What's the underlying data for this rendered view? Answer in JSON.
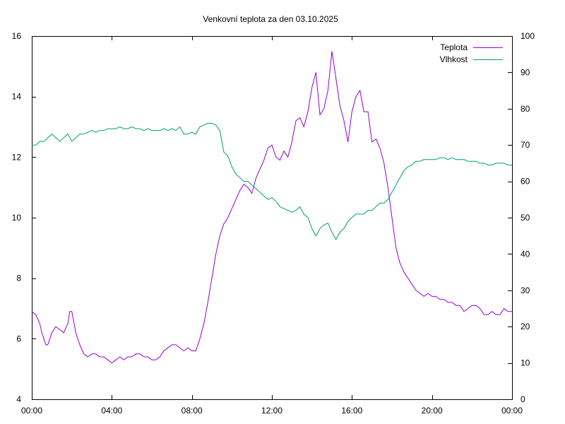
{
  "chart_data": {
    "type": "line",
    "title": "Venkovní teplota za den 03.10.2025",
    "xlabel": "",
    "ylabel": "",
    "y2label": "",
    "x_range_hours": [
      0,
      24
    ],
    "x_tick_labels": [
      "00:00",
      "04:00",
      "08:00",
      "12:00",
      "16:00",
      "20:00",
      "00:00"
    ],
    "x_tick_hours": [
      0,
      4,
      8,
      12,
      16,
      20,
      24
    ],
    "ylim": [
      4,
      16
    ],
    "y_ticks": [
      4,
      6,
      8,
      10,
      12,
      14,
      16
    ],
    "y2lim": [
      0,
      100
    ],
    "y2_ticks": [
      0,
      10,
      20,
      30,
      40,
      50,
      60,
      70,
      80,
      90,
      100
    ],
    "grid": false,
    "legend_position": "top-right",
    "series": [
      {
        "name": "Teplota",
        "axis": "left",
        "color": "#9400d3",
        "x_hours": [
          0,
          0.2,
          0.4,
          0.5,
          0.6,
          0.7,
          0.8,
          1.0,
          1.2,
          1.4,
          1.6,
          1.8,
          1.9,
          2.0,
          2.2,
          2.4,
          2.6,
          2.8,
          3.0,
          3.2,
          3.4,
          3.6,
          3.8,
          4.0,
          4.2,
          4.4,
          4.6,
          4.8,
          5.0,
          5.2,
          5.4,
          5.6,
          5.8,
          6.0,
          6.2,
          6.4,
          6.6,
          6.8,
          7.0,
          7.2,
          7.4,
          7.6,
          7.8,
          8.0,
          8.2,
          8.4,
          8.6,
          8.8,
          9.0,
          9.2,
          9.4,
          9.6,
          9.8,
          10.0,
          10.2,
          10.4,
          10.6,
          10.8,
          11.0,
          11.2,
          11.4,
          11.6,
          11.8,
          12.0,
          12.2,
          12.4,
          12.6,
          12.8,
          13.0,
          13.2,
          13.4,
          13.6,
          13.8,
          14.0,
          14.2,
          14.4,
          14.6,
          14.8,
          15.0,
          15.2,
          15.4,
          15.6,
          15.8,
          16.0,
          16.2,
          16.4,
          16.6,
          16.8,
          17.0,
          17.2,
          17.4,
          17.6,
          17.8,
          18.0,
          18.2,
          18.4,
          18.6,
          18.8,
          19.0,
          19.2,
          19.4,
          19.6,
          19.8,
          20.0,
          20.2,
          20.4,
          20.6,
          20.8,
          21.0,
          21.2,
          21.4,
          21.6,
          21.8,
          22.0,
          22.2,
          22.4,
          22.6,
          22.8,
          23.0,
          23.2,
          23.4,
          23.6,
          23.8,
          24.0
        ],
        "values": [
          6.9,
          6.8,
          6.5,
          6.2,
          6.0,
          5.8,
          5.8,
          6.2,
          6.4,
          6.3,
          6.2,
          6.5,
          6.9,
          6.9,
          6.2,
          5.8,
          5.5,
          5.4,
          5.5,
          5.5,
          5.4,
          5.4,
          5.3,
          5.2,
          5.3,
          5.4,
          5.3,
          5.4,
          5.4,
          5.5,
          5.5,
          5.4,
          5.4,
          5.3,
          5.3,
          5.4,
          5.6,
          5.7,
          5.8,
          5.8,
          5.7,
          5.6,
          5.7,
          5.6,
          5.6,
          6.0,
          6.5,
          7.2,
          8.0,
          8.8,
          9.4,
          9.8,
          10.0,
          10.3,
          10.6,
          10.9,
          11.1,
          11.0,
          10.8,
          11.3,
          11.6,
          11.9,
          12.3,
          12.4,
          12.0,
          11.9,
          12.2,
          12.0,
          12.5,
          13.2,
          13.3,
          13.0,
          13.5,
          14.3,
          14.8,
          13.4,
          13.6,
          14.2,
          15.5,
          14.6,
          13.7,
          13.2,
          12.5,
          13.5,
          14.0,
          14.2,
          13.5,
          13.5,
          12.5,
          12.6,
          12.3,
          11.8,
          11.0,
          10.0,
          9.0,
          8.5,
          8.2,
          8.0,
          7.8,
          7.6,
          7.5,
          7.4,
          7.5,
          7.4,
          7.4,
          7.3,
          7.3,
          7.2,
          7.2,
          7.1,
          7.1,
          6.9,
          7.0,
          7.1,
          7.1,
          7.0,
          6.8,
          6.8,
          6.9,
          6.8,
          6.8,
          7.0,
          6.9,
          6.9
        ]
      },
      {
        "name": "Vlhkost",
        "axis": "right",
        "color": "#009e73",
        "x_hours": [
          0,
          0.2,
          0.4,
          0.6,
          0.8,
          1.0,
          1.2,
          1.4,
          1.6,
          1.8,
          2.0,
          2.2,
          2.4,
          2.6,
          2.8,
          3.0,
          3.2,
          3.4,
          3.6,
          3.8,
          4.0,
          4.2,
          4.4,
          4.6,
          4.8,
          5.0,
          5.2,
          5.4,
          5.6,
          5.8,
          6.0,
          6.2,
          6.4,
          6.6,
          6.8,
          7.0,
          7.2,
          7.4,
          7.6,
          7.8,
          8.0,
          8.2,
          8.4,
          8.6,
          8.8,
          9.0,
          9.2,
          9.4,
          9.6,
          9.8,
          10.0,
          10.2,
          10.4,
          10.6,
          10.8,
          11.0,
          11.2,
          11.4,
          11.6,
          11.8,
          12.0,
          12.2,
          12.4,
          12.6,
          12.8,
          13.0,
          13.2,
          13.4,
          13.6,
          13.8,
          14.0,
          14.2,
          14.4,
          14.6,
          14.8,
          15.0,
          15.2,
          15.4,
          15.6,
          15.8,
          16.0,
          16.2,
          16.4,
          16.6,
          16.8,
          17.0,
          17.2,
          17.4,
          17.6,
          17.8,
          18.0,
          18.2,
          18.4,
          18.6,
          18.8,
          19.0,
          19.2,
          19.4,
          19.6,
          19.8,
          20.0,
          20.2,
          20.4,
          20.6,
          20.8,
          21.0,
          21.2,
          21.4,
          21.6,
          21.8,
          22.0,
          22.2,
          22.4,
          22.6,
          22.8,
          23.0,
          23.2,
          23.4,
          23.6,
          23.8,
          24.0
        ],
        "values": [
          70,
          70,
          71,
          71,
          72,
          73,
          72,
          71,
          72,
          73,
          71,
          72,
          73,
          73,
          73.5,
          74,
          73.5,
          74,
          74,
          74.5,
          74.5,
          74.5,
          75,
          74.5,
          74.5,
          75,
          74.5,
          74.5,
          74,
          74.5,
          74,
          74,
          74,
          74.5,
          74,
          74.5,
          74,
          75,
          73,
          73,
          73.5,
          73,
          75,
          75.5,
          76,
          76,
          75.5,
          74,
          68,
          67,
          64,
          62,
          61,
          60,
          60,
          59,
          58,
          57,
          56,
          55,
          55.5,
          54.5,
          53,
          52.5,
          52,
          51.5,
          52,
          53,
          51,
          50,
          47,
          45,
          47,
          48,
          48.5,
          46,
          44,
          46,
          47,
          49,
          50,
          51,
          51,
          51,
          52,
          52,
          53,
          54,
          54,
          55,
          57,
          59,
          61,
          63,
          64,
          64.5,
          65.5,
          65.5,
          66,
          66,
          66,
          66,
          66.5,
          66.5,
          66,
          66.5,
          66,
          66,
          66,
          65.5,
          65.5,
          65.5,
          65,
          65,
          64.5,
          64.5,
          65,
          65,
          65,
          64.5,
          64.5
        ]
      }
    ]
  }
}
